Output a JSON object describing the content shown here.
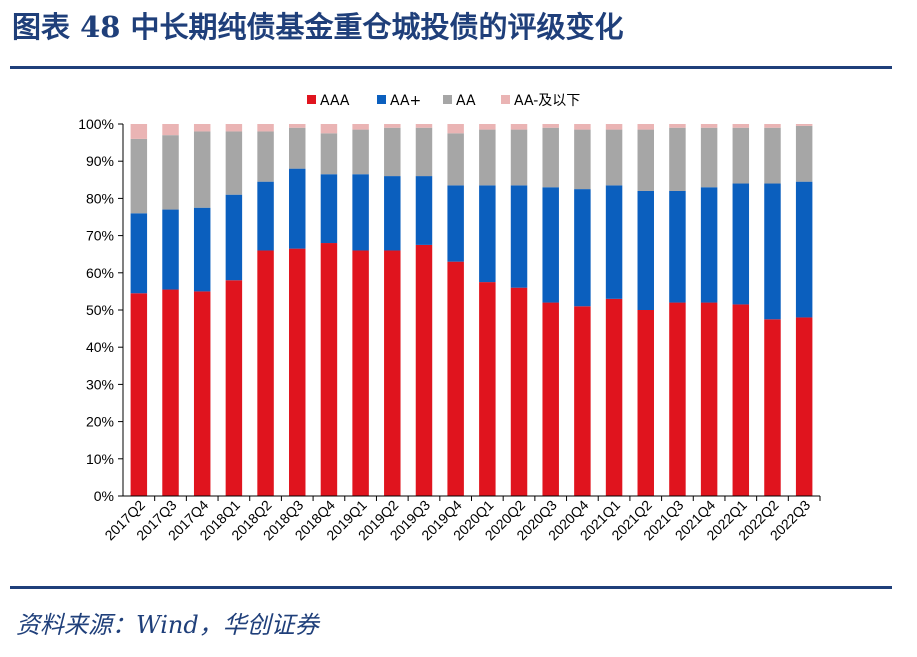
{
  "title": "图表 48  中长期纯债基金重仓城投债的评级变化",
  "source": "资料来源：Wind，华创证券",
  "colors": {
    "AAA": "#e0141e",
    "AA+": "#0b5fbe",
    "AA": "#a6a6a6",
    "AA-及以下": "#eab4b4",
    "brand": "#1f3f7a"
  },
  "chart_data": {
    "type": "bar",
    "stacked": true,
    "title": "",
    "xlabel": "",
    "ylabel": "",
    "ylim": [
      0,
      100
    ],
    "y_ticks": [
      "0%",
      "10%",
      "20%",
      "30%",
      "40%",
      "50%",
      "60%",
      "70%",
      "80%",
      "90%",
      "100%"
    ],
    "legend_position": "top",
    "categories": [
      "2017Q2",
      "2017Q3",
      "2017Q4",
      "2018Q1",
      "2018Q2",
      "2018Q3",
      "2018Q4",
      "2019Q1",
      "2019Q2",
      "2019Q3",
      "2019Q4",
      "2020Q1",
      "2020Q2",
      "2020Q3",
      "2020Q4",
      "2021Q1",
      "2021Q2",
      "2021Q3",
      "2021Q4",
      "2022Q1",
      "2022Q2",
      "2022Q3"
    ],
    "series": [
      {
        "name": "AAA",
        "values": [
          54.5,
          55.5,
          55,
          58,
          66,
          66.5,
          68,
          66,
          66,
          67.5,
          63,
          57.5,
          56,
          52,
          51,
          53,
          50,
          52,
          52,
          51.5,
          47.5,
          48
        ]
      },
      {
        "name": "AA+",
        "values": [
          21.5,
          21.5,
          22.5,
          23,
          18.5,
          21.5,
          18.5,
          20.5,
          20,
          18.5,
          20.5,
          26,
          27.5,
          31,
          31.5,
          30.5,
          32,
          30,
          31,
          32.5,
          36.5,
          36.5
        ]
      },
      {
        "name": "AA",
        "values": [
          20,
          20,
          20.5,
          17,
          13.5,
          11,
          11,
          12,
          13,
          13,
          14,
          15,
          15,
          16,
          16,
          15,
          16.5,
          17,
          16,
          15,
          15,
          15
        ]
      },
      {
        "name": "AA-及以下",
        "values": [
          4,
          3,
          2,
          2,
          2,
          1,
          2.5,
          1.5,
          1,
          1,
          2.5,
          1.5,
          1.5,
          1,
          1.5,
          1.5,
          1.5,
          1,
          1,
          1,
          1,
          0.5
        ]
      }
    ]
  }
}
